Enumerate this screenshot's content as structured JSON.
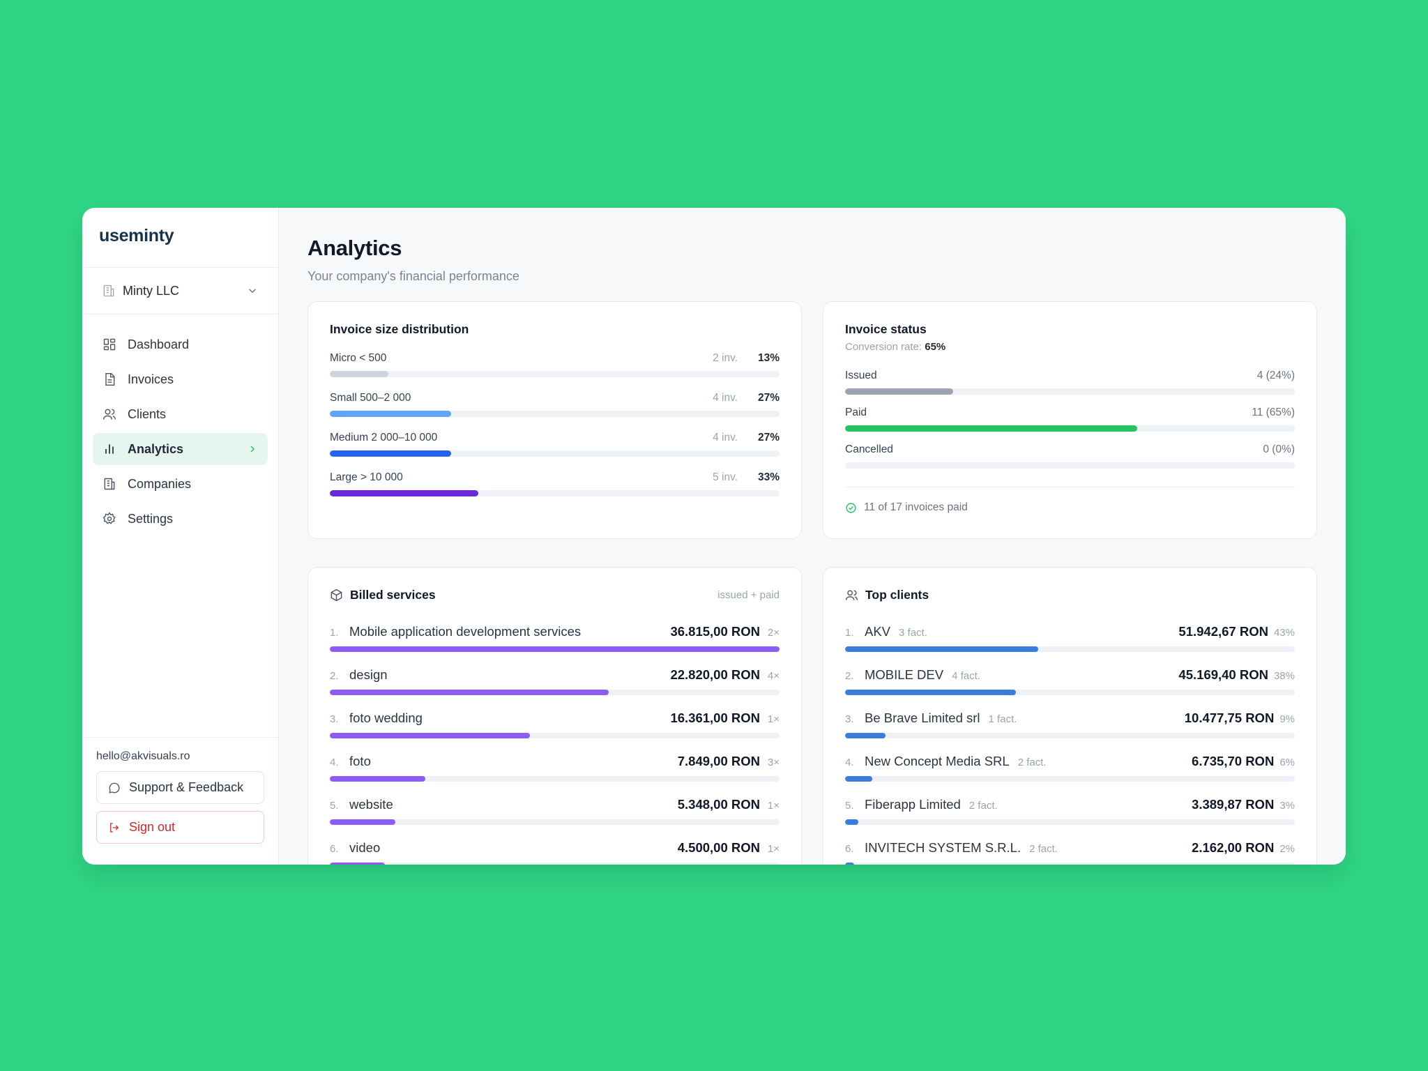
{
  "app": {
    "logo": "useminty"
  },
  "company": {
    "name": "Minty LLC"
  },
  "nav": [
    {
      "label": "Dashboard",
      "icon": "dashboard-icon"
    },
    {
      "label": "Invoices",
      "icon": "invoice-icon"
    },
    {
      "label": "Clients",
      "icon": "users-icon"
    },
    {
      "label": "Analytics",
      "icon": "bar-chart-icon",
      "active": true
    },
    {
      "label": "Companies",
      "icon": "building-icon"
    },
    {
      "label": "Settings",
      "icon": "gear-icon"
    }
  ],
  "sidebar_bottom": {
    "email": "hello@akvisuals.ro",
    "support_label": "Support & Feedback",
    "signout_label": "Sign out"
  },
  "page": {
    "title": "Analytics",
    "subtitle": "Your company's financial performance"
  },
  "distribution": {
    "title": "Invoice size distribution",
    "rows": [
      {
        "label": "Micro < 500",
        "count": "2 inv.",
        "pct": "13%",
        "value": 13,
        "color": "#cfd4dc"
      },
      {
        "label": "Small 500–2 000",
        "count": "4 inv.",
        "pct": "27%",
        "value": 27,
        "color": "#60a5fa"
      },
      {
        "label": "Medium 2 000–10 000",
        "count": "4 inv.",
        "pct": "27%",
        "value": 27,
        "color": "#2563eb"
      },
      {
        "label": "Large > 10 000",
        "count": "5 inv.",
        "pct": "33%",
        "value": 33,
        "color": "#6d28d9"
      }
    ]
  },
  "status": {
    "title": "Invoice status",
    "conversion_label": "Conversion rate:",
    "conversion_value": "65%",
    "rows": [
      {
        "label": "Issued",
        "value_text": "4 (24%)",
        "value": 24,
        "color": "#9ca3b4"
      },
      {
        "label": "Paid",
        "value_text": "11 (65%)",
        "value": 65,
        "color": "#22c55e"
      },
      {
        "label": "Cancelled",
        "value_text": "0 (0%)",
        "value": 0,
        "color": "#d1d5db"
      }
    ],
    "footer": "11 of 17 invoices paid"
  },
  "services": {
    "title": "Billed services",
    "note": "issued + paid",
    "rows": [
      {
        "num": "1.",
        "label": "Mobile application development services",
        "amount": "36.815,00 RON",
        "count": "2×",
        "value": 100
      },
      {
        "num": "2.",
        "label": "design",
        "amount": "22.820,00 RON",
        "count": "4×",
        "value": 62
      },
      {
        "num": "3.",
        "label": "foto wedding",
        "amount": "16.361,00 RON",
        "count": "1×",
        "value": 44.5
      },
      {
        "num": "4.",
        "label": "foto",
        "amount": "7.849,00 RON",
        "count": "3×",
        "value": 21.3
      },
      {
        "num": "5.",
        "label": "website",
        "amount": "5.348,00 RON",
        "count": "1×",
        "value": 14.5
      },
      {
        "num": "6.",
        "label": "video",
        "amount": "4.500,00 RON",
        "count": "1×",
        "value": 12.2
      }
    ],
    "bar_color": "#8b5cf6"
  },
  "clients": {
    "title": "Top clients",
    "rows": [
      {
        "num": "1.",
        "label": "AKV",
        "invoices": "3 fact.",
        "amount": "51.942,67 RON",
        "pct": "43%",
        "value": 43
      },
      {
        "num": "2.",
        "label": "MOBILE DEV",
        "invoices": "4 fact.",
        "amount": "45.169,40 RON",
        "pct": "38%",
        "value": 38
      },
      {
        "num": "3.",
        "label": "Be Brave Limited srl",
        "invoices": "1 fact.",
        "amount": "10.477,75 RON",
        "pct": "9%",
        "value": 9
      },
      {
        "num": "4.",
        "label": "New Concept Media SRL",
        "invoices": "2 fact.",
        "amount": "6.735,70 RON",
        "pct": "6%",
        "value": 6
      },
      {
        "num": "5.",
        "label": "Fiberapp Limited",
        "invoices": "2 fact.",
        "amount": "3.389,87 RON",
        "pct": "3%",
        "value": 3
      },
      {
        "num": "6.",
        "label": "INVITECH SYSTEM S.R.L.",
        "invoices": "2 fact.",
        "amount": "2.162,00 RON",
        "pct": "2%",
        "value": 2
      }
    ],
    "bar_color": "#3b7ddd"
  }
}
